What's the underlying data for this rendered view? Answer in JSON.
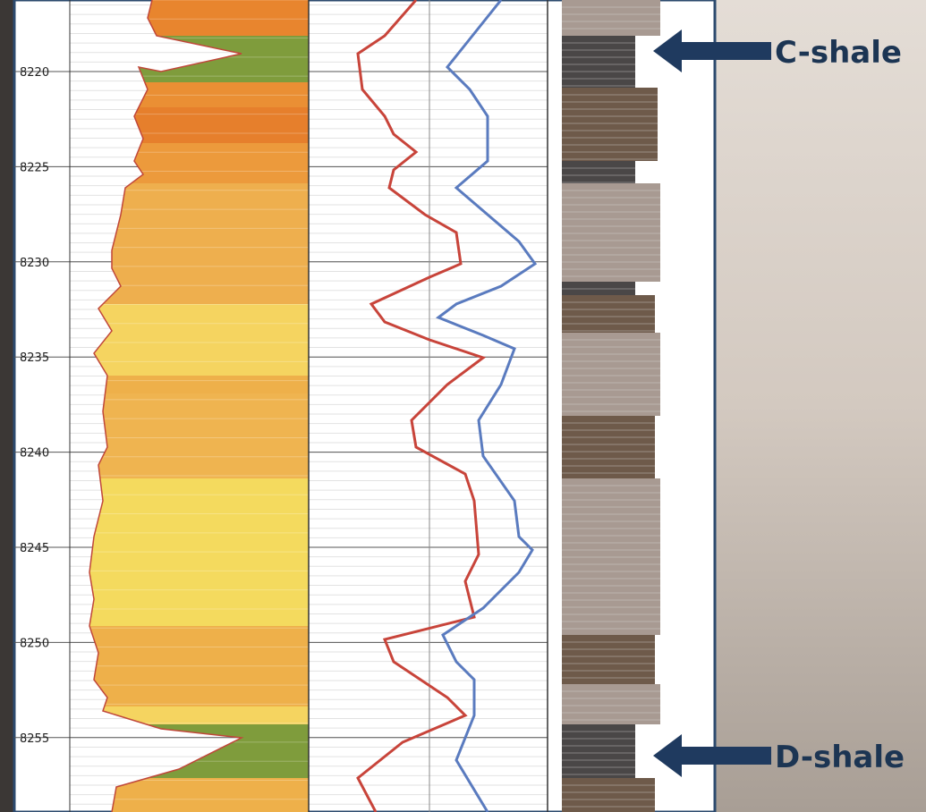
{
  "depth_axis": {
    "labels": [
      "8220",
      "8225",
      "8230",
      "8235",
      "8240",
      "8245",
      "8250",
      "8255"
    ]
  },
  "annotations": [
    "C-shale",
    "D-shale"
  ]
}
